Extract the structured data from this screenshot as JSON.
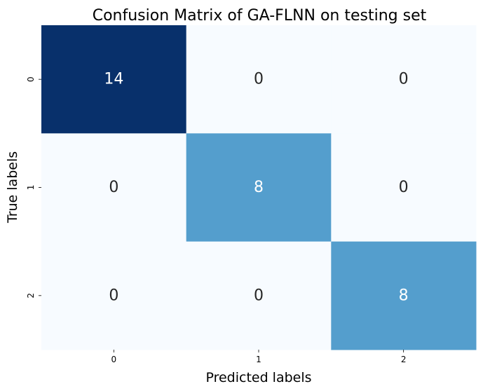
{
  "chart_data": {
    "type": "heatmap",
    "title": "Confusion Matrix of GA-FLNN on testing set",
    "xlabel": "Predicted labels",
    "ylabel": "True labels",
    "x_categories": [
      "0",
      "1",
      "2"
    ],
    "y_categories": [
      "0",
      "1",
      "2"
    ],
    "matrix": [
      [
        14,
        0,
        0
      ],
      [
        0,
        8,
        0
      ],
      [
        0,
        0,
        8
      ]
    ],
    "colormap": "Blues",
    "vmin": 0,
    "vmax": 14,
    "colorbar": false,
    "colors": {
      "low": "#f7fbff",
      "mid": "#569fce",
      "high": "#08306b",
      "text_dark": "#262626",
      "text_light": "#ffffff"
    }
  }
}
